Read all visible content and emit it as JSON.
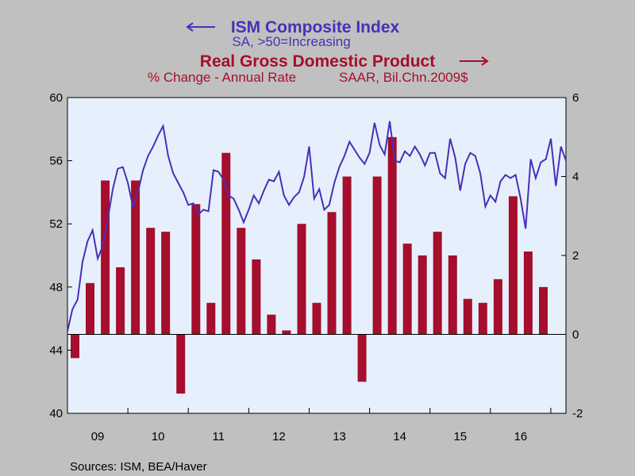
{
  "colors": {
    "background": "#c0c0c0",
    "plot_background": "#e6f0fc",
    "ism_line": "#4a2fb8",
    "gdp_bars": "#a50e2c",
    "axis": "#000000"
  },
  "chart_data": {
    "type": "bar+line",
    "ism_title": "ISM Composite Index",
    "ism_subtitle": "SA, >50=Increasing",
    "gdp_title": "Real Gross Domestic Product",
    "gdp_subtitle_left": "% Change - Annual Rate",
    "gdp_subtitle_right": "SAAR, Bil.Chn.2009$",
    "source": "Sources:  ISM, BEA/Haver",
    "x_tick_labels": [
      "09",
      "10",
      "11",
      "12",
      "13",
      "14",
      "15",
      "16"
    ],
    "x_range": [
      2009.0,
      2017.25
    ],
    "left_axis": {
      "range": [
        40,
        60
      ],
      "ticks": [
        40,
        44,
        48,
        52,
        56,
        60
      ]
    },
    "right_axis": {
      "range": [
        -2,
        6
      ],
      "ticks": [
        -2,
        0,
        2,
        4,
        6
      ]
    },
    "gdp_series": {
      "axis": "right",
      "quarters": [
        "2009Q1",
        "2009Q2",
        "2009Q3",
        "2009Q4",
        "2010Q1",
        "2010Q2",
        "2010Q3",
        "2010Q4",
        "2011Q1",
        "2011Q2",
        "2011Q3",
        "2011Q4",
        "2012Q1",
        "2012Q2",
        "2012Q3",
        "2012Q4",
        "2013Q1",
        "2013Q2",
        "2013Q3",
        "2013Q4",
        "2014Q1",
        "2014Q2",
        "2014Q3",
        "2014Q4",
        "2015Q1",
        "2015Q2",
        "2015Q3",
        "2015Q4",
        "2016Q1",
        "2016Q2",
        "2016Q3",
        "2016Q4",
        "2017Q1",
        "2017Q2"
      ],
      "values": [
        -0.6,
        1.3,
        3.9,
        1.7,
        3.9,
        2.7,
        2.6,
        -1.5,
        3.3,
        0.8,
        4.6,
        2.7,
        1.9,
        0.5,
        0.1,
        2.8,
        0.8,
        3.1,
        4.0,
        -1.2,
        4.0,
        5.0,
        2.3,
        2.0,
        2.6,
        2.0,
        0.9,
        0.8,
        1.4,
        3.5,
        2.1,
        1.2,
        null,
        null
      ]
    },
    "ism_series": {
      "axis": "left",
      "x": [
        2009.0,
        2009.083,
        2009.167,
        2009.25,
        2009.333,
        2009.417,
        2009.5,
        2009.583,
        2009.667,
        2009.75,
        2009.833,
        2009.917,
        2010.0,
        2010.083,
        2010.167,
        2010.25,
        2010.333,
        2010.417,
        2010.5,
        2010.583,
        2010.667,
        2010.75,
        2010.833,
        2010.917,
        2011.0,
        2011.083,
        2011.167,
        2011.25,
        2011.333,
        2011.417,
        2011.5,
        2011.583,
        2011.667,
        2011.75,
        2011.833,
        2011.917,
        2012.0,
        2012.083,
        2012.167,
        2012.25,
        2012.333,
        2012.417,
        2012.5,
        2012.583,
        2012.667,
        2012.75,
        2012.833,
        2012.917,
        2013.0,
        2013.083,
        2013.167,
        2013.25,
        2013.333,
        2013.417,
        2013.5,
        2013.583,
        2013.667,
        2013.75,
        2013.833,
        2013.917,
        2014.0,
        2014.083,
        2014.167,
        2014.25,
        2014.333,
        2014.417,
        2014.5,
        2014.583,
        2014.667,
        2014.75,
        2014.833,
        2014.917,
        2015.0,
        2015.083,
        2015.167,
        2015.25,
        2015.333,
        2015.417,
        2015.5,
        2015.583,
        2015.667,
        2015.75,
        2015.833,
        2015.917,
        2016.0,
        2016.083,
        2016.167,
        2016.25,
        2016.333,
        2016.417,
        2016.5,
        2016.583,
        2016.667,
        2016.75,
        2016.833,
        2016.917,
        2017.0,
        2017.083,
        2017.167,
        2017.25
      ],
      "values": [
        45.2,
        46.6,
        47.2,
        49.6,
        50.9,
        51.6,
        49.8,
        50.6,
        52.3,
        54.2,
        55.5,
        55.6,
        54.6,
        53.1,
        54.0,
        55.4,
        56.3,
        56.9,
        57.6,
        58.2,
        56.3,
        55.2,
        54.6,
        54.0,
        53.2,
        53.3,
        52.6,
        52.9,
        52.8,
        55.4,
        55.3,
        54.8,
        53.8,
        53.6,
        52.9,
        52.1,
        52.9,
        53.8,
        53.3,
        54.1,
        54.8,
        54.7,
        55.3,
        53.8,
        53.2,
        53.7,
        54.0,
        55.0,
        56.9,
        53.6,
        54.2,
        52.9,
        53.2,
        54.6,
        55.6,
        56.3,
        57.2,
        56.7,
        56.2,
        55.8,
        56.5,
        58.4,
        57.0,
        56.4,
        58.5,
        56.0,
        55.9,
        56.6,
        56.3,
        56.9,
        56.4,
        55.7,
        56.5,
        56.5,
        55.2,
        54.9,
        57.4,
        56.2,
        54.1,
        55.8,
        56.5,
        56.3,
        55.2,
        53.1,
        53.8,
        53.4,
        54.7,
        55.1,
        54.9,
        55.1,
        53.6,
        51.7,
        56.1,
        54.9,
        55.9,
        56.1,
        57.4,
        54.4,
        56.9,
        56.0
      ]
    }
  }
}
